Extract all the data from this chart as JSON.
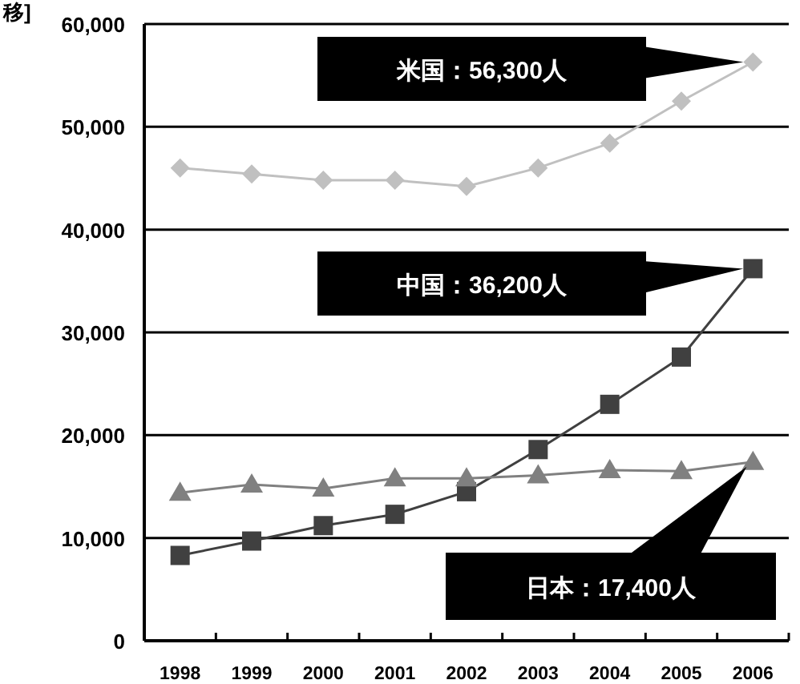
{
  "chart_data": {
    "type": "line",
    "title": "移]",
    "categories": [
      "1998",
      "1999",
      "2000",
      "2001",
      "2002",
      "2003",
      "2004",
      "2005",
      "2006"
    ],
    "series": [
      {
        "color": "#c0c0c0",
        "marker": "diamond",
        "values": [
          46000,
          45400,
          44800,
          44800,
          44200,
          46000,
          48400,
          52500,
          56300
        ]
      },
      {
        "color": "#404040",
        "marker": "square",
        "values": [
          8300,
          9700,
          11200,
          12300,
          14500,
          18600,
          23000,
          27600,
          36200
        ]
      },
      {
        "color": "#808080",
        "marker": "triangle",
        "values": [
          14400,
          15200,
          14800,
          15800,
          15800,
          16100,
          16600,
          16500,
          17400
        ]
      }
    ],
    "ylim": [
      0,
      60000
    ],
    "yticks": [
      {
        "value": 0,
        "label": "0"
      },
      {
        "value": 10000,
        "label": "10,000"
      },
      {
        "value": 20000,
        "label": "20,000"
      },
      {
        "value": 30000,
        "label": "30,000"
      },
      {
        "value": 40000,
        "label": "40,000"
      },
      {
        "value": 50000,
        "label": "50,000"
      },
      {
        "value": 60000,
        "label": "60,000"
      }
    ],
    "grid": "y",
    "annotations": [
      "米国：56,300人",
      "中国：36,200人",
      "日本：17,400人"
    ]
  }
}
